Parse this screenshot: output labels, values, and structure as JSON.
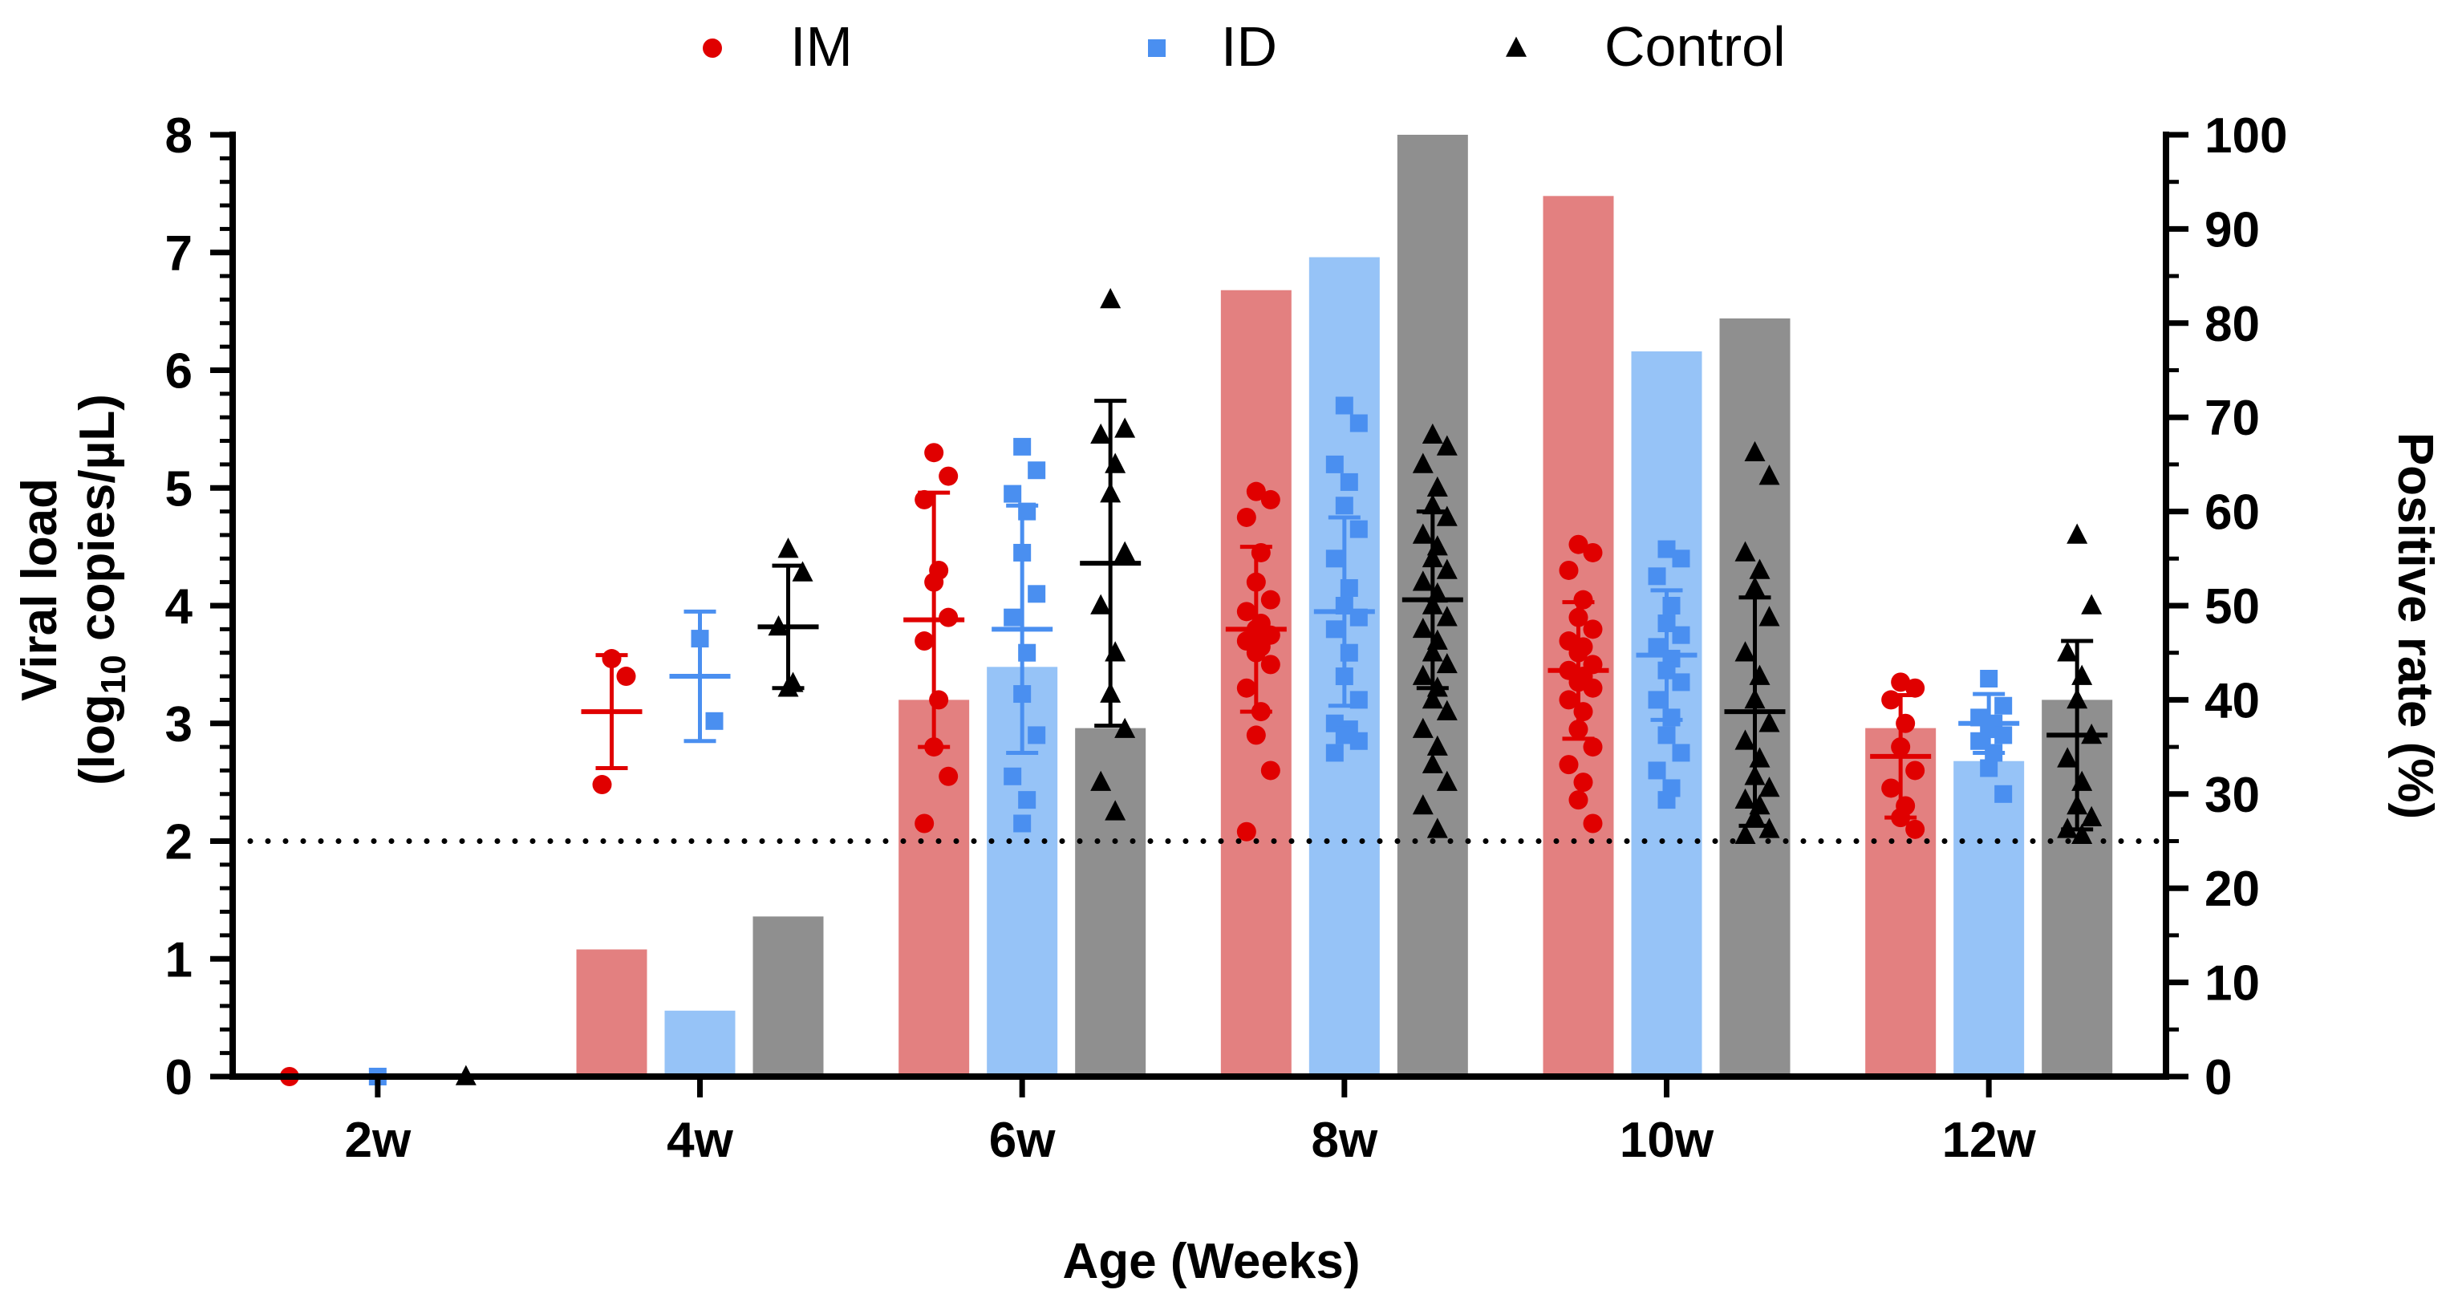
{
  "chart_data": {
    "type": "bar+scatter",
    "title": "",
    "xlabel": "Age (Weeks)",
    "ylabel_line1": "Viral load",
    "ylabel_line2_prefix": "(log",
    "ylabel_line2_sub": "10",
    "ylabel_line2_suffix": " copies/µL)",
    "y2label": "Positive rate (%)",
    "ylim": [
      0,
      8
    ],
    "y2lim": [
      0,
      100
    ],
    "yticks": [
      "0",
      "1",
      "2",
      "3",
      "4",
      "5",
      "6",
      "7",
      "8"
    ],
    "y2ticks": [
      "0",
      "10",
      "20",
      "30",
      "40",
      "50",
      "60",
      "70",
      "80",
      "90",
      "100"
    ],
    "threshold": 2,
    "categories": [
      "2w",
      "4w",
      "6w",
      "8w",
      "10w",
      "12w"
    ],
    "legend_position": "top-center",
    "series": [
      {
        "name": "IM",
        "color": "#e00000",
        "bar_color": "#e38080",
        "marker": "circle",
        "positive_rate": [
          0,
          13.5,
          40,
          83.5,
          93.5,
          37
        ],
        "mean": [
          0,
          3.1,
          3.88,
          3.8,
          3.45,
          2.72
        ],
        "sd": [
          0,
          0.48,
          1.08,
          0.7,
          0.58,
          0.52
        ],
        "points": [
          [
            0
          ],
          [
            3.55,
            3.4,
            2.48
          ],
          [
            5.3,
            5.1,
            4.9,
            4.3,
            4.2,
            3.9,
            3.7,
            3.2,
            2.8,
            2.55,
            2.15
          ],
          [
            4.97,
            4.9,
            4.75,
            4.45,
            4.2,
            4.05,
            3.95,
            3.85,
            3.8,
            3.75,
            3.7,
            3.65,
            3.6,
            3.5,
            3.3,
            3.1,
            2.9,
            2.6,
            2.08
          ],
          [
            4.52,
            4.45,
            4.3,
            4.05,
            3.9,
            3.8,
            3.7,
            3.65,
            3.6,
            3.5,
            3.45,
            3.4,
            3.35,
            3.3,
            3.2,
            3.1,
            2.95,
            2.8,
            2.65,
            2.5,
            2.35,
            2.15
          ],
          [
            3.35,
            3.3,
            3.2,
            3.0,
            2.8,
            2.6,
            2.45,
            2.3,
            2.2,
            2.1
          ]
        ]
      },
      {
        "name": "ID",
        "color": "#4a8ff0",
        "bar_color": "#96c3f7",
        "marker": "square",
        "positive_rate": [
          0,
          7,
          43.5,
          87,
          77,
          33.5
        ],
        "mean": [
          0,
          3.4,
          3.8,
          3.95,
          3.58,
          3.0
        ],
        "sd": [
          0,
          0.55,
          1.05,
          0.8,
          0.55,
          0.25
        ],
        "points": [
          [
            0
          ],
          [
            3.72,
            3.02
          ],
          [
            5.35,
            5.15,
            4.95,
            4.8,
            4.45,
            4.1,
            3.9,
            3.6,
            3.25,
            2.9,
            2.55,
            2.35,
            2.15
          ],
          [
            5.7,
            5.55,
            5.2,
            5.05,
            4.85,
            4.65,
            4.4,
            4.15,
            4.0,
            3.9,
            3.8,
            3.6,
            3.4,
            3.2,
            3.0,
            2.95,
            2.9,
            2.85,
            2.75
          ],
          [
            4.48,
            4.4,
            4.25,
            4.0,
            3.85,
            3.75,
            3.65,
            3.55,
            3.45,
            3.35,
            3.2,
            3.05,
            2.9,
            2.75,
            2.6,
            2.45,
            2.35
          ],
          [
            3.38,
            3.15,
            3.05,
            3.0,
            2.95,
            2.9,
            2.85,
            2.75,
            2.62,
            2.4
          ]
        ]
      },
      {
        "name": "Control",
        "color": "#000000",
        "bar_color": "#8f8f8f",
        "marker": "triangle",
        "positive_rate": [
          0,
          17,
          37,
          100,
          80.5,
          40
        ],
        "mean": [
          0,
          3.82,
          4.36,
          4.05,
          3.1,
          2.9
        ],
        "sd": [
          0,
          0.52,
          1.38,
          0.75,
          0.97,
          0.8
        ],
        "points": [
          [
            0
          ],
          [
            4.48,
            4.28,
            3.82,
            3.34,
            3.3
          ],
          [
            6.6,
            5.5,
            5.45,
            5.2,
            4.95,
            4.45,
            4.0,
            3.6,
            3.25,
            2.95,
            2.5,
            2.25
          ],
          [
            5.45,
            5.35,
            5.2,
            5.0,
            4.85,
            4.75,
            4.6,
            4.5,
            4.4,
            4.3,
            4.2,
            4.1,
            4.0,
            3.9,
            3.8,
            3.7,
            3.6,
            3.5,
            3.4,
            3.3,
            3.2,
            3.1,
            2.95,
            2.8,
            2.65,
            2.5,
            2.3,
            2.1
          ],
          [
            5.3,
            5.1,
            4.45,
            4.3,
            4.15,
            3.9,
            3.6,
            3.4,
            3.2,
            3.0,
            2.85,
            2.7,
            2.55,
            2.45,
            2.35,
            2.3,
            2.2,
            2.1,
            2.05
          ],
          [
            4.6,
            4.0,
            3.6,
            3.4,
            3.2,
            2.9,
            2.7,
            2.5,
            2.3,
            2.2,
            2.1,
            2.05
          ]
        ]
      }
    ]
  }
}
